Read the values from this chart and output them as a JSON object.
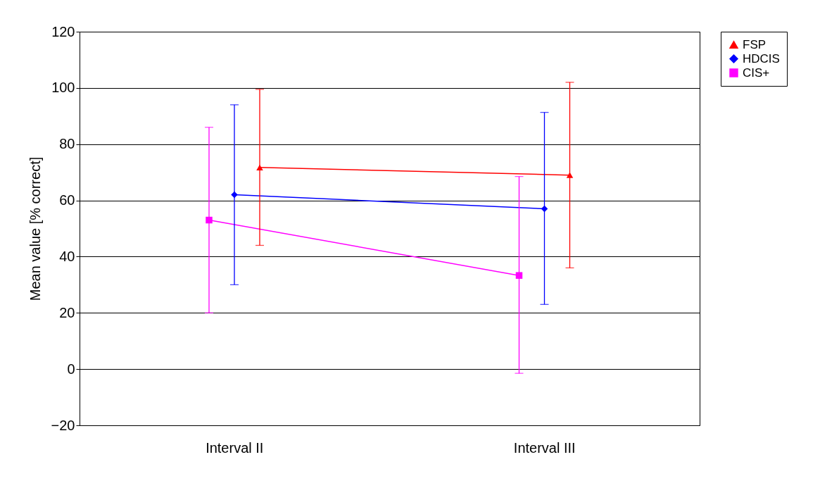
{
  "chart_data": {
    "type": "line",
    "ylabel": "Mean value [% correct]",
    "categories": [
      "Interval II",
      "Interval III"
    ],
    "series": [
      {
        "name": "FSP",
        "color": "#ff0000",
        "marker": "triangle",
        "values": [
          71.7,
          69
        ],
        "errors": [
          [
            44,
            99.5
          ],
          [
            36,
            102
          ]
        ]
      },
      {
        "name": "HDCIS",
        "color": "#0000ff",
        "marker": "diamond",
        "values": [
          62,
          57
        ],
        "errors": [
          [
            30,
            94
          ],
          [
            23,
            91.3
          ]
        ]
      },
      {
        "name": "CIS+",
        "color": "#ff00ff",
        "marker": "square",
        "values": [
          53,
          33.3
        ],
        "errors": [
          [
            20,
            86
          ],
          [
            -1.5,
            68.5
          ]
        ]
      }
    ],
    "ylim": [
      -20,
      120
    ],
    "yticks": [
      -20,
      0,
      20,
      40,
      60,
      80,
      100,
      120
    ],
    "grid": "y",
    "legend": "right"
  }
}
